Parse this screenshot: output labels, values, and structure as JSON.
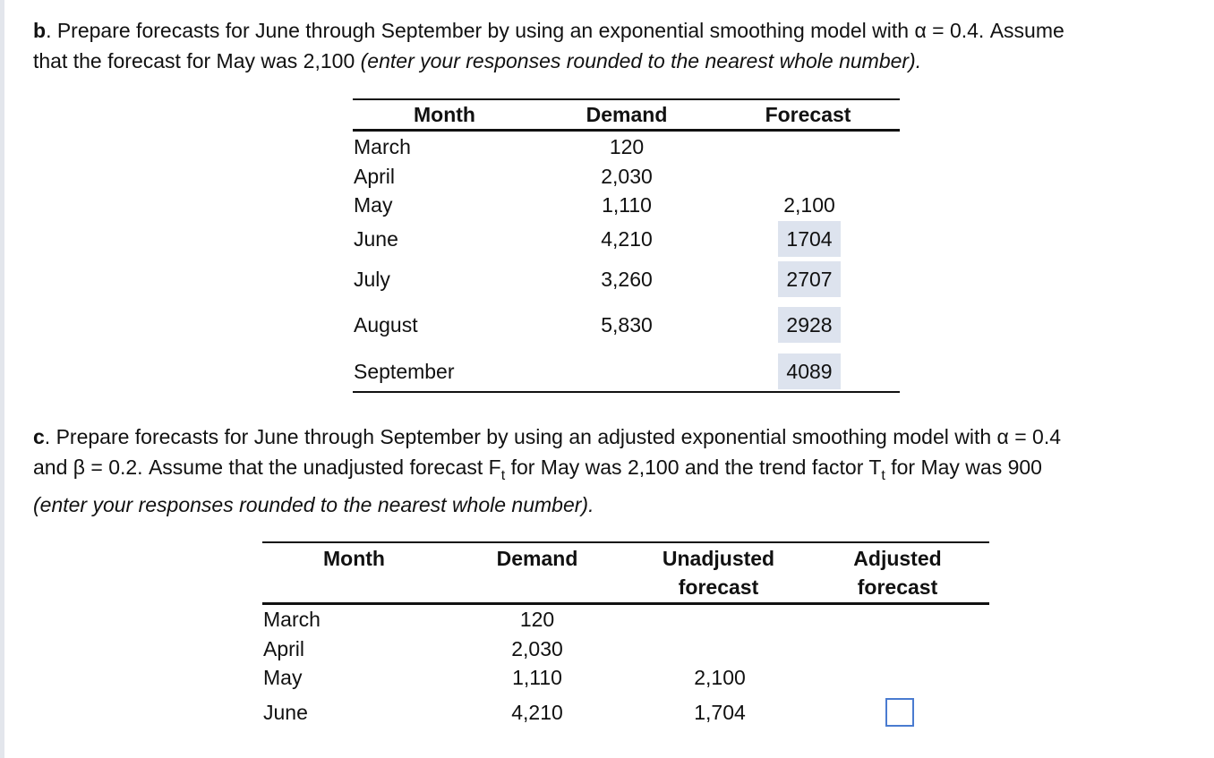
{
  "part_b": {
    "label": "b",
    "text_1": ". Prepare forecasts for June through September by using an exponential smoothing model with α = 0.4. Assume",
    "text_2": "that the forecast for May was 2,100 ",
    "note": "(enter your responses rounded to the nearest whole number).",
    "headers": {
      "month": "Month",
      "demand": "Demand",
      "forecast": "Forecast"
    },
    "rows": [
      {
        "month": "March",
        "demand": "120",
        "forecast": ""
      },
      {
        "month": "April",
        "demand": "2,030",
        "forecast": ""
      },
      {
        "month": "May",
        "demand": "1,110",
        "forecast": "2,100"
      },
      {
        "month": "June",
        "demand": "4,210",
        "forecast": "1704"
      },
      {
        "month": "July",
        "demand": "3,260",
        "forecast": "2707"
      },
      {
        "month": "August",
        "demand": "5,830",
        "forecast": "2928"
      },
      {
        "month": "September",
        "demand": "",
        "forecast": "4089"
      }
    ]
  },
  "part_c": {
    "label": "c",
    "text_1": ". Prepare forecasts for June through September by using an adjusted exponential smoothing model with α = 0.4",
    "text_2a": "and β = 0.2. Assume that the unadjusted forecast F",
    "text_2b": " for May was 2,100 and the trend factor T",
    "text_2c": " for May was 900",
    "subscript": "t",
    "note": "(enter your responses rounded to the nearest whole number).",
    "headers": {
      "month": "Month",
      "demand": "Demand",
      "unadjusted_1": "Unadjusted",
      "unadjusted_2": "forecast",
      "adjusted_1": "Adjusted",
      "adjusted_2": "forecast"
    },
    "rows": [
      {
        "month": "March",
        "demand": "120",
        "unadjusted": ""
      },
      {
        "month": "April",
        "demand": "2,030",
        "unadjusted": ""
      },
      {
        "month": "May",
        "demand": "1,110",
        "unadjusted": "2,100"
      },
      {
        "month": "June",
        "demand": "4,210",
        "unadjusted": "1,704"
      }
    ]
  }
}
